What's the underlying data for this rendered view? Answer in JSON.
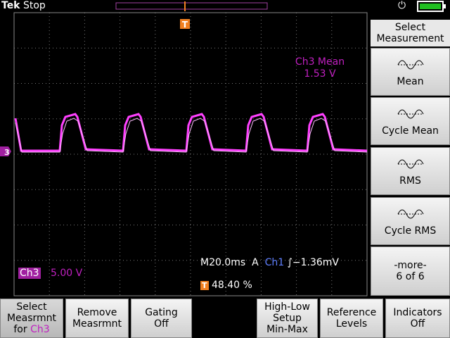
{
  "header": {
    "brand": "Tek",
    "status": "Stop",
    "trigger_marker": "T"
  },
  "channel_marker": "3",
  "measurement_readout": {
    "label": "Ch3 Mean",
    "value": "1.53 V"
  },
  "channel": {
    "name": "Ch3",
    "scale": "5.00 V"
  },
  "timebase": {
    "horizontal": "M20.0ms",
    "trigger_mode": "A",
    "trigger_source": "Ch1",
    "trigger_level": "−1.36mV"
  },
  "trigger_position": {
    "marker": "T",
    "value": "48.40 %"
  },
  "side_menu": {
    "title": [
      "Select",
      "Measurement"
    ],
    "items": [
      {
        "label": [
          "Mean"
        ]
      },
      {
        "label": [
          "Cycle Mean"
        ]
      },
      {
        "label": [
          "RMS"
        ]
      },
      {
        "label": [
          "Cycle RMS"
        ]
      },
      {
        "label": [
          "-more-",
          "6 of 6"
        ]
      }
    ]
  },
  "bottom_menu": [
    {
      "lines": [
        "Select",
        "Measrmnt",
        "for"
      ],
      "channel": "Ch3"
    },
    {
      "lines": [
        "Remove",
        "Measrmnt"
      ]
    },
    {
      "lines": [
        "Gating",
        "Off"
      ]
    },
    {
      "lines": [
        "High-Low",
        "Setup",
        "Min-Max"
      ]
    },
    {
      "lines": [
        "Reference",
        "Levels"
      ]
    },
    {
      "lines": [
        "Indicators",
        "Off"
      ]
    }
  ]
}
